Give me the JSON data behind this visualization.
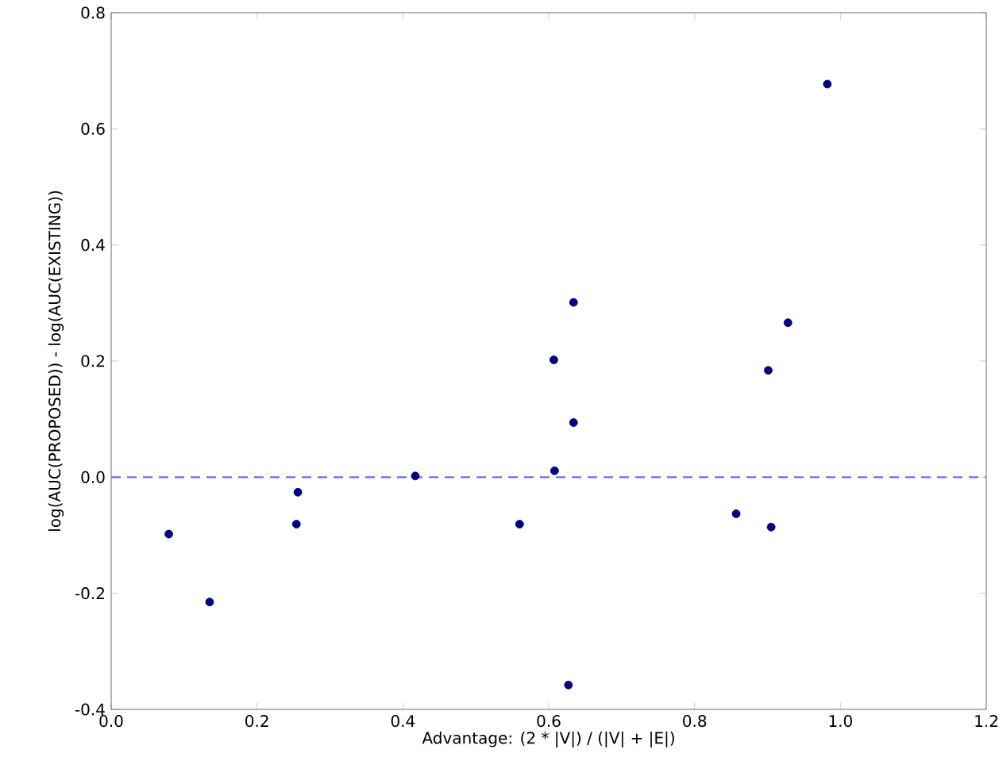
{
  "chart_data": {
    "type": "scatter",
    "xlabel": "Advantage: (2 * |V|) / (|V| + |E|)",
    "ylabel": "log(AUC(PROPOSED)) - log(AUC(EXISTING))",
    "x": [
      0.079,
      0.135,
      0.256,
      0.254,
      0.417,
      0.56,
      0.607,
      0.608,
      0.634,
      0.634,
      0.627,
      0.857,
      0.905,
      0.901,
      0.928,
      0.982
    ],
    "values": [
      -0.098,
      -0.215,
      -0.026,
      -0.081,
      0.002,
      -0.081,
      0.202,
      0.011,
      0.301,
      0.094,
      -0.358,
      -0.063,
      -0.086,
      0.184,
      0.266,
      0.677
    ],
    "color": "#000080",
    "marker": "circle",
    "xlim": [
      0.0,
      1.2
    ],
    "ylim": [
      -0.4,
      0.8
    ],
    "xticks": [
      {
        "value": 0.0,
        "label": "0.0"
      },
      0.2,
      0.4,
      0.6,
      0.8,
      {
        "value": 1.0,
        "label": "1.0"
      },
      1.2
    ],
    "yticks": [
      -0.4,
      -0.2,
      {
        "value": 0.0,
        "label": "0.0"
      },
      0.2,
      0.4,
      0.6,
      0.8
    ],
    "ref_lines": [
      {
        "axis": "y",
        "value": 0,
        "color": "#6b6bff",
        "line_style": "dashed"
      }
    ]
  }
}
